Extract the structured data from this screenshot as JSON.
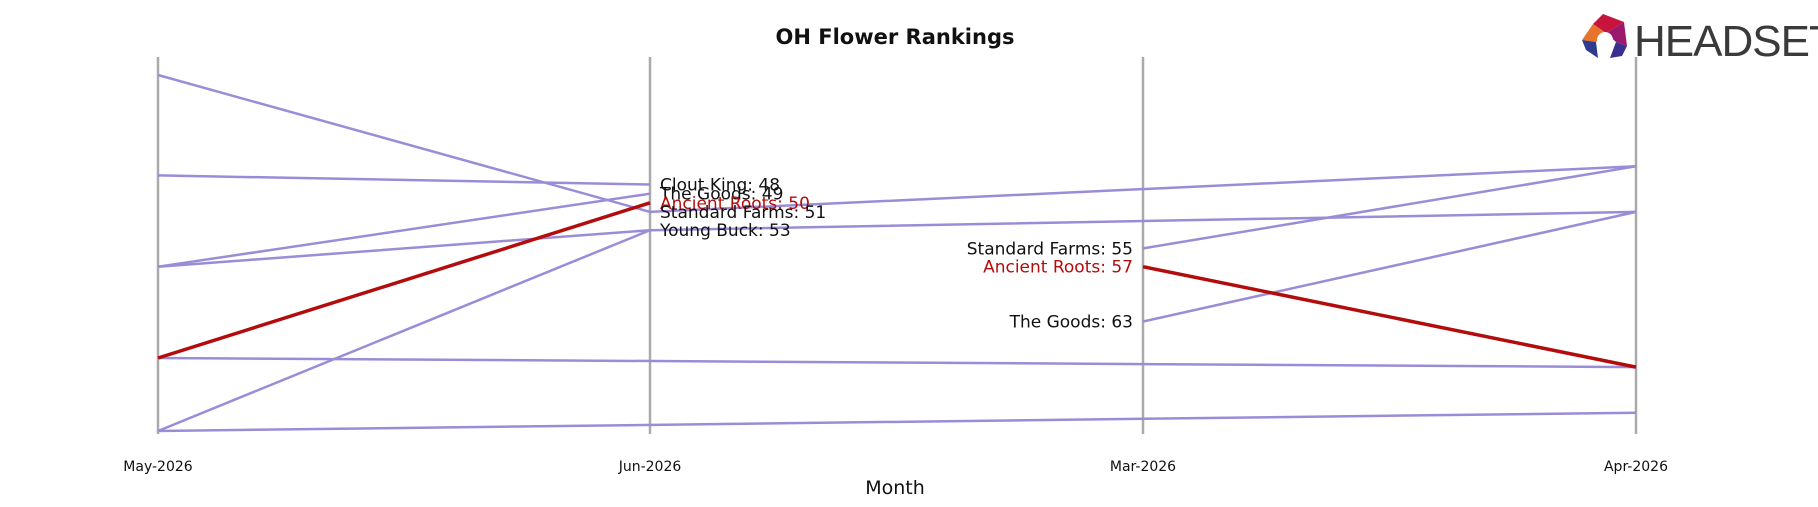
{
  "chart_data": {
    "type": "line",
    "title": "OH Flower Rankings",
    "xlabel": "Month",
    "ylabel": "",
    "categories": [
      "May-2026",
      "Jun-2026",
      "Mar-2026",
      "Apr-2026"
    ],
    "rank_axis": {
      "top_rank": 36,
      "bottom_rank": 75,
      "inverted": true
    },
    "grid": false,
    "highlight": "Ancient Roots",
    "colors": {
      "highlight": "#b30c0c",
      "other": "#9b8cd8",
      "axis": "#aaaaaa"
    },
    "series": [
      {
        "values": [
          36,
          51,
          null,
          46
        ]
      },
      {
        "values": [
          47,
          48,
          null,
          null
        ]
      },
      {
        "values": [
          57,
          49,
          null,
          null
        ]
      },
      {
        "values": [
          57,
          53,
          null,
          51
        ]
      },
      {
        "values": [
          75,
          53,
          null,
          null
        ]
      },
      {
        "values": [
          null,
          null,
          55,
          46
        ]
      },
      {
        "values": [
          null,
          null,
          63,
          51
        ]
      },
      {
        "values": [
          67,
          null,
          null,
          68
        ]
      },
      {
        "values": [
          75,
          null,
          null,
          73
        ]
      },
      {
        "name": "Ancient Roots",
        "highlight": true,
        "values": [
          67,
          50,
          null,
          null
        ]
      },
      {
        "name": "Ancient Roots",
        "highlight": true,
        "values": [
          null,
          null,
          57,
          68
        ]
      }
    ],
    "point_labels": [
      {
        "category": "Jun-2026",
        "text": "Clout King: 48",
        "value": 48,
        "highlight": false,
        "side": "right"
      },
      {
        "category": "Jun-2026",
        "text": "The Goods: 49",
        "value": 49,
        "highlight": false,
        "side": "right"
      },
      {
        "category": "Jun-2026",
        "text": "Ancient Roots: 50",
        "value": 50,
        "highlight": true,
        "side": "right"
      },
      {
        "category": "Jun-2026",
        "text": "Standard Farms: 51",
        "value": 51,
        "highlight": false,
        "side": "right"
      },
      {
        "category": "Jun-2026",
        "text": "Young Buck: 53",
        "value": 53,
        "highlight": false,
        "side": "right"
      },
      {
        "category": "Mar-2026",
        "text": "Standard Farms: 55",
        "value": 55,
        "highlight": false,
        "side": "left"
      },
      {
        "category": "Mar-2026",
        "text": "Ancient Roots: 57",
        "value": 57,
        "highlight": true,
        "side": "left"
      },
      {
        "category": "Mar-2026",
        "text": "The Goods: 63",
        "value": 63,
        "highlight": false,
        "side": "left"
      }
    ]
  },
  "logo": {
    "text": "HEADSET",
    "icon": "headset-logo-icon"
  }
}
